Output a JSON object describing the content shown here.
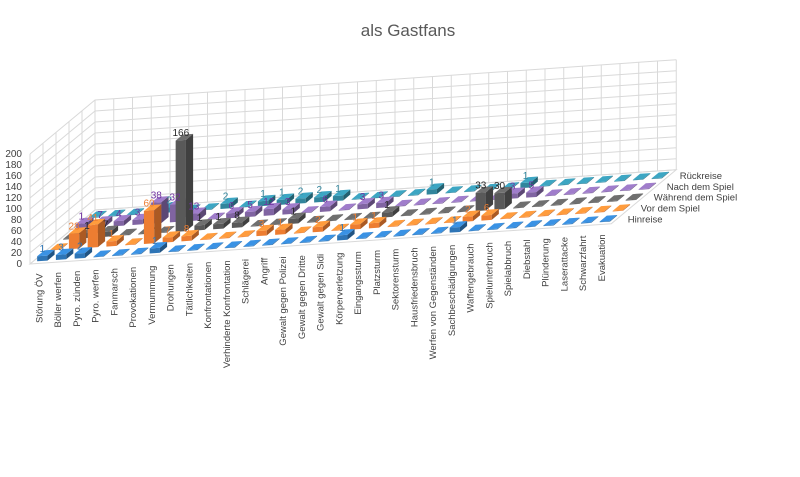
{
  "chart_data": {
    "type": "bar",
    "style": "3d-column",
    "title": "als Gastfans",
    "xlabel": "",
    "ylabel": "",
    "ylim": [
      0,
      200
    ],
    "y_ticks": [
      0,
      20,
      40,
      60,
      80,
      100,
      120,
      140,
      160,
      180,
      200
    ],
    "grid": true,
    "legend": "none (series names printed along the depth axis)",
    "categories": [
      "Störung ÖV",
      "Böller werfen",
      "Pyro. zünden",
      "Pyro. werfen",
      "Fanmarsch",
      "Provokationen",
      "Vermummung",
      "Drohungen",
      "Tätlichkeiten",
      "Konfrontationen",
      "Verhinderte Konfrontation",
      "Schlägerei",
      "Angriff",
      "Gewalt gegen Polizei",
      "Gewalt gegen Dritte",
      "Gewalt gegen Sidi",
      "Körperverletzung",
      "Eingangssturm",
      "Platzsturm",
      "Sektorensturm",
      "Hausfriedensbruch",
      "Werfen von Gegenständen",
      "Sachbeschädigungen",
      "Waffengebrauch",
      "Spielunterbruch",
      "Spielabbruch",
      "Diebstahl",
      "Plünderung",
      "Laserattacke",
      "Schwarzfahrt",
      "Evakuation"
    ],
    "series": [
      {
        "name": "Hinreise",
        "color": "#2e75b6",
        "label_color": "#2e75b6",
        "values": [
          1,
          3,
          2,
          0,
          0,
          0,
          1,
          0,
          0,
          0,
          0,
          0,
          0,
          0,
          0,
          0,
          1,
          0,
          0,
          0,
          0,
          0,
          1,
          0,
          0,
          0,
          0,
          0,
          0,
          0,
          0
        ]
      },
      {
        "name": "Vor dem Spiel",
        "color": "#ed7d31",
        "label_color": "#ed7d31",
        "values": [
          0,
          28,
          41,
          1,
          0,
          60,
          7,
          8,
          0,
          0,
          0,
          3,
          1,
          0,
          2,
          0,
          1,
          1,
          0,
          0,
          0,
          0,
          2,
          6,
          0,
          0,
          0,
          0,
          0,
          0,
          0
        ]
      },
      {
        "name": "Während dem Spiel",
        "color": "#595959",
        "label_color": "#262626",
        "values": [
          0,
          1,
          7,
          0,
          0,
          0,
          166,
          1,
          1,
          8,
          0,
          0,
          1,
          0,
          0,
          0,
          0,
          1,
          0,
          0,
          0,
          0,
          33,
          30,
          0,
          0,
          0,
          0,
          0,
          0,
          0
        ]
      },
      {
        "name": "Nach dem Spiel",
        "color": "#8064a2",
        "label_color": "#7030a0",
        "values": [
          1,
          7,
          4,
          3,
          38,
          32,
          13,
          0,
          6,
          5,
          12,
          3,
          0,
          6,
          0,
          3,
          3,
          0,
          0,
          0,
          0,
          0,
          0,
          3,
          5,
          0,
          0,
          0,
          0,
          0,
          0
        ]
      },
      {
        "name": "Rückreise",
        "color": "#31859c",
        "label_color": "#31859c",
        "values": [
          0,
          0,
          0,
          0,
          2,
          0,
          0,
          2,
          0,
          1,
          1,
          2,
          2,
          1,
          0,
          0,
          0,
          0,
          1,
          0,
          0,
          0,
          0,
          1,
          0,
          0,
          0,
          0,
          0,
          0,
          0
        ]
      }
    ]
  }
}
